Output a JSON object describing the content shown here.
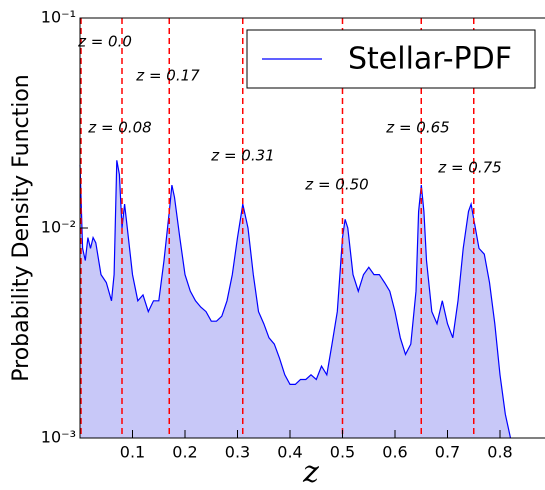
{
  "chart_data": {
    "type": "area",
    "y_label": "Probability Density Function",
    "x_label": "z",
    "ylog": true,
    "xlim": [
      0,
      0.88
    ],
    "ylim": [
      0.001,
      0.1
    ],
    "xticks": [
      0.1,
      0.2,
      0.3,
      0.4,
      0.5,
      0.6,
      0.7,
      0.8
    ],
    "yticks": [
      {
        "value": 0.001,
        "label": "10⁻³"
      },
      {
        "value": 0.01,
        "label": "10⁻²"
      },
      {
        "value": 0.1,
        "label": "10⁻¹"
      }
    ],
    "legend_location": "upper right",
    "fill_color": "#c8c8f8",
    "x": [
      0.0,
      0.005,
      0.01,
      0.015,
      0.02,
      0.025,
      0.03,
      0.04,
      0.05,
      0.06,
      0.065,
      0.07,
      0.075,
      0.08,
      0.085,
      0.09,
      0.1,
      0.11,
      0.12,
      0.13,
      0.14,
      0.15,
      0.16,
      0.17,
      0.175,
      0.18,
      0.19,
      0.2,
      0.21,
      0.22,
      0.23,
      0.24,
      0.25,
      0.26,
      0.27,
      0.28,
      0.29,
      0.3,
      0.31,
      0.32,
      0.33,
      0.34,
      0.35,
      0.36,
      0.37,
      0.38,
      0.39,
      0.4,
      0.41,
      0.42,
      0.43,
      0.44,
      0.45,
      0.46,
      0.47,
      0.48,
      0.49,
      0.5,
      0.505,
      0.51,
      0.52,
      0.53,
      0.54,
      0.55,
      0.56,
      0.57,
      0.58,
      0.59,
      0.6,
      0.61,
      0.62,
      0.63,
      0.64,
      0.645,
      0.65,
      0.655,
      0.66,
      0.67,
      0.68,
      0.69,
      0.7,
      0.71,
      0.72,
      0.73,
      0.74,
      0.745,
      0.75,
      0.76,
      0.77,
      0.78,
      0.79,
      0.8,
      0.81,
      0.82
    ],
    "series": [
      {
        "name": "Stellar-PDF",
        "color": "#0000ff",
        "values": [
          0.02,
          0.008,
          0.007,
          0.009,
          0.008,
          0.009,
          0.0085,
          0.006,
          0.0055,
          0.0045,
          0.006,
          0.021,
          0.018,
          0.01,
          0.013,
          0.01,
          0.006,
          0.0045,
          0.0048,
          0.004,
          0.0045,
          0.0045,
          0.007,
          0.012,
          0.016,
          0.014,
          0.009,
          0.006,
          0.005,
          0.0045,
          0.0042,
          0.004,
          0.0036,
          0.0036,
          0.0038,
          0.0045,
          0.006,
          0.009,
          0.013,
          0.01,
          0.006,
          0.004,
          0.0035,
          0.003,
          0.0028,
          0.0024,
          0.002,
          0.0018,
          0.0018,
          0.0019,
          0.0019,
          0.002,
          0.0019,
          0.0022,
          0.002,
          0.0028,
          0.004,
          0.009,
          0.011,
          0.01,
          0.006,
          0.005,
          0.006,
          0.0065,
          0.006,
          0.006,
          0.0055,
          0.005,
          0.004,
          0.003,
          0.0025,
          0.0028,
          0.005,
          0.012,
          0.016,
          0.012,
          0.007,
          0.004,
          0.0035,
          0.0045,
          0.0035,
          0.003,
          0.0045,
          0.008,
          0.012,
          0.013,
          0.011,
          0.008,
          0.0075,
          0.0055,
          0.0035,
          0.002,
          0.0013,
          0.001
        ]
      }
    ],
    "vlines": {
      "color": "#ff0000",
      "values": [
        0.0,
        0.08,
        0.17,
        0.31,
        0.5,
        0.65,
        0.75
      ],
      "labels": [
        "z = 0.0",
        "z = 0.08",
        "z = 0.17",
        "z = 0.31",
        "z = 0.50",
        "z = 0.65",
        "z = 0.75"
      ]
    }
  }
}
